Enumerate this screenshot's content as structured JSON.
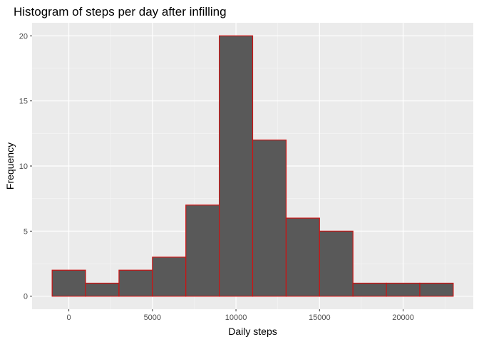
{
  "chart_data": {
    "type": "bar",
    "title": "Histogram of steps per day after infilling",
    "xlabel": "Daily steps",
    "ylabel": "Frequency",
    "bin_width": 2000,
    "bins": [
      {
        "start": -1000,
        "end": 1000,
        "count": 2
      },
      {
        "start": 1000,
        "end": 3000,
        "count": 1
      },
      {
        "start": 3000,
        "end": 5000,
        "count": 2
      },
      {
        "start": 5000,
        "end": 7000,
        "count": 3
      },
      {
        "start": 7000,
        "end": 9000,
        "count": 7
      },
      {
        "start": 9000,
        "end": 11000,
        "count": 20
      },
      {
        "start": 11000,
        "end": 13000,
        "count": 12
      },
      {
        "start": 13000,
        "end": 15000,
        "count": 6
      },
      {
        "start": 15000,
        "end": 17000,
        "count": 5
      },
      {
        "start": 17000,
        "end": 19000,
        "count": 1
      },
      {
        "start": 19000,
        "end": 21000,
        "count": 1
      },
      {
        "start": 21000,
        "end": 23000,
        "count": 1
      }
    ],
    "xlim": [
      -2200,
      24200
    ],
    "ylim": [
      -1,
      21
    ],
    "x_ticks": [
      0,
      5000,
      10000,
      15000,
      20000
    ],
    "x_tick_labels": [
      "0",
      "5000",
      "10000",
      "15000",
      "20000"
    ],
    "y_ticks": [
      0,
      5,
      10,
      15,
      20
    ],
    "y_tick_labels": [
      "0",
      "5",
      "10",
      "15",
      "20"
    ],
    "grid": true,
    "legend": "none",
    "colors": {
      "panel_background": "#ebebeb",
      "grid_major": "#ffffff",
      "grid_minor": "#f5f5f5",
      "bar_fill": "#595959",
      "bar_outline": "#cc1414",
      "tick_text": "#4d4d4d",
      "tick_mark": "#333333",
      "text": "#000000"
    }
  }
}
